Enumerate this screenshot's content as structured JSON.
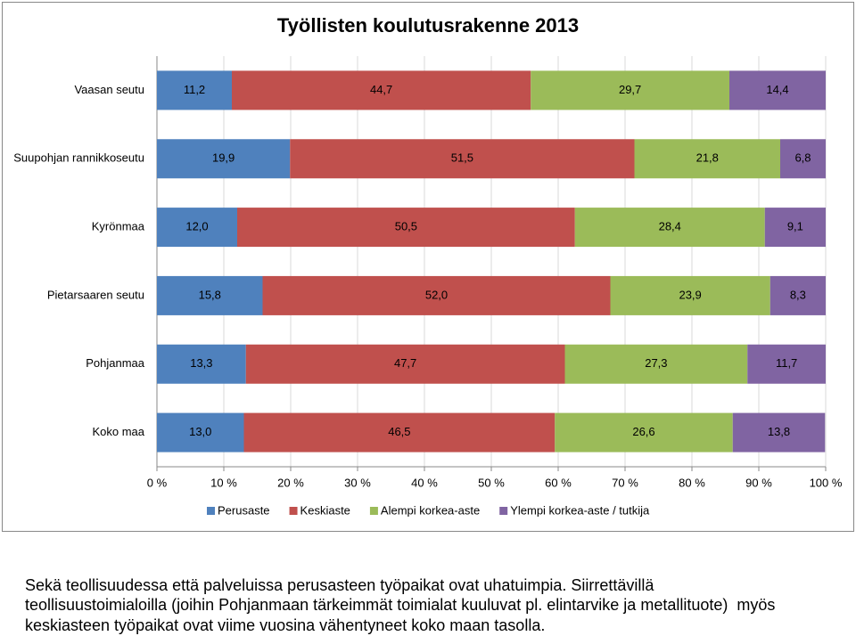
{
  "chart_data": {
    "type": "stacked_bar_horizontal",
    "title": "Työllisten koulutusrakenne 2013",
    "categories": [
      "Vaasan seutu",
      "Suupohjan rannikkoseutu",
      "Kyrönmaa",
      "Pietarsaaren seutu",
      "Pohjanmaa",
      "Koko maa"
    ],
    "series": [
      {
        "name": "Perusaste",
        "color": "#4f81bd",
        "values": [
          11.2,
          19.9,
          12.0,
          15.8,
          13.3,
          13.0
        ],
        "value_labels": [
          "11,2",
          "19,9",
          "12,0",
          "15,8",
          "13,3",
          "13,0"
        ]
      },
      {
        "name": "Keskiaste",
        "color": "#c0504d",
        "values": [
          44.7,
          51.5,
          50.5,
          52.0,
          47.7,
          46.5
        ],
        "value_labels": [
          "44,7",
          "51,5",
          "50,5",
          "52,0",
          "47,7",
          "46,5"
        ]
      },
      {
        "name": "Alempi korkea-aste",
        "color": "#9bbb59",
        "values": [
          29.7,
          21.8,
          28.4,
          23.9,
          27.3,
          26.6
        ],
        "value_labels": [
          "29,7",
          "21,8",
          "28,4",
          "23,9",
          "27,3",
          "26,6"
        ]
      },
      {
        "name": "Ylempi korkea-aste / tutkija",
        "color": "#8064a2",
        "values": [
          14.4,
          6.8,
          9.1,
          8.3,
          11.7,
          13.8
        ],
        "value_labels": [
          "14,4",
          "6,8",
          "9,1",
          "8,3",
          "11,7",
          "13,8"
        ]
      }
    ],
    "xlim": [
      0,
      100
    ],
    "xticks": [
      {
        "value": 0,
        "label": "0 %"
      },
      {
        "value": 10,
        "label": "10 %"
      },
      {
        "value": 20,
        "label": "20 %"
      },
      {
        "value": 30,
        "label": "30 %"
      },
      {
        "value": 40,
        "label": "40 %"
      },
      {
        "value": 50,
        "label": "50 %"
      },
      {
        "value": 60,
        "label": "60 %"
      },
      {
        "value": 70,
        "label": "70 %"
      },
      {
        "value": 80,
        "label": "80 %"
      },
      {
        "value": 90,
        "label": "90 %"
      },
      {
        "value": 100,
        "label": "100 %"
      }
    ],
    "grid": true,
    "legend": "bottom"
  },
  "caption": [
    "Sekä teollisuudessa että palveluissa perusasteen työpaikat ovat uhatuimpia. Siirrettävillä",
    "teollisuustoimialoilla (joihin Pohjanmaan tärkeimmät toimialat kuuluvat pl. elintarvike ja metallituote)  myös",
    "keskiasteen työpaikat ovat viime vuosina vähentyneet koko maan tasolla."
  ]
}
